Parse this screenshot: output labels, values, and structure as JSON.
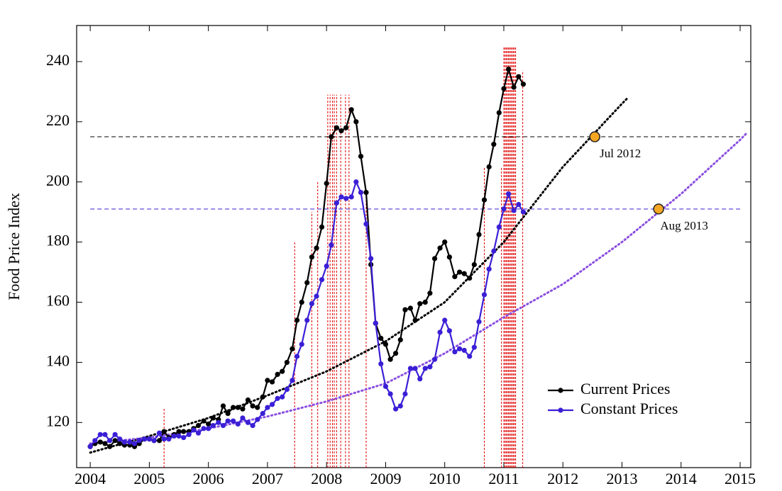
{
  "chart_data": {
    "type": "line",
    "ylabel": "Food Price Index",
    "xlim": [
      2003.77,
      2015.18
    ],
    "ylim": [
      105,
      252
    ],
    "xticks": [
      2004,
      2005,
      2006,
      2007,
      2008,
      2009,
      2010,
      2011,
      2012,
      2013,
      2014,
      2015
    ],
    "yticks": [
      120,
      140,
      160,
      180,
      200,
      220,
      240
    ],
    "legend": "lower right",
    "x": [
      2004.0,
      2004.08,
      2004.17,
      2004.25,
      2004.33,
      2004.42,
      2004.5,
      2004.58,
      2004.67,
      2004.75,
      2004.83,
      2004.92,
      2005.0,
      2005.08,
      2005.17,
      2005.25,
      2005.33,
      2005.42,
      2005.5,
      2005.58,
      2005.67,
      2005.75,
      2005.83,
      2005.92,
      2006.0,
      2006.08,
      2006.17,
      2006.25,
      2006.33,
      2006.42,
      2006.5,
      2006.58,
      2006.67,
      2006.75,
      2006.83,
      2006.92,
      2007.0,
      2007.08,
      2007.17,
      2007.25,
      2007.33,
      2007.42,
      2007.5,
      2007.58,
      2007.67,
      2007.75,
      2007.83,
      2007.92,
      2008.0,
      2008.08,
      2008.17,
      2008.25,
      2008.33,
      2008.42,
      2008.5,
      2008.58,
      2008.67,
      2008.75,
      2008.83,
      2008.92,
      2009.0,
      2009.08,
      2009.17,
      2009.25,
      2009.33,
      2009.42,
      2009.5,
      2009.58,
      2009.67,
      2009.75,
      2009.83,
      2009.92,
      2010.0,
      2010.08,
      2010.17,
      2010.25,
      2010.33,
      2010.42,
      2010.5,
      2010.58,
      2010.67,
      2010.75,
      2010.83,
      2010.92,
      2011.0,
      2011.08,
      2011.17,
      2011.25,
      2011.33
    ],
    "series": [
      {
        "name": "Current Prices",
        "color": "#000000",
        "values": [
          112,
          113,
          113.5,
          113,
          112,
          114,
          113,
          112.5,
          112.5,
          112,
          113,
          114.5,
          114.5,
          114,
          114,
          117,
          115,
          116,
          117,
          117,
          117,
          118,
          119,
          120.5,
          119.5,
          121.5,
          121,
          125.5,
          123,
          125,
          125,
          124.5,
          127.5,
          125.5,
          125,
          128.5,
          134,
          133.5,
          136,
          137,
          140,
          144.5,
          154,
          160,
          166.5,
          175,
          178,
          185,
          199.5,
          215,
          218,
          217,
          218,
          224,
          220,
          208.5,
          196.5,
          172.5,
          153,
          148,
          146,
          141,
          143,
          147.5,
          157.5,
          158,
          154,
          159.5,
          160,
          163,
          174.5,
          178,
          180,
          175,
          168.5,
          170,
          169.5,
          168,
          172.5,
          182.5,
          194,
          205,
          212.5,
          223,
          231,
          237.5,
          231.5,
          235,
          232.5
        ]
      },
      {
        "name": "Constant Prices",
        "color": "#3a1fd6",
        "values": [
          112,
          114,
          116,
          116,
          114,
          116,
          114.5,
          113.5,
          113.5,
          113,
          114,
          114.5,
          114.5,
          114,
          116.5,
          114.5,
          114.5,
          115.5,
          115.5,
          115,
          116,
          117.5,
          116.5,
          118,
          118,
          119,
          120,
          119,
          120.5,
          120.5,
          119.5,
          121.5,
          120,
          119,
          121,
          123,
          125,
          126,
          128,
          128.5,
          131,
          134,
          142,
          146,
          154,
          159.5,
          162,
          167.5,
          172,
          179,
          193,
          195,
          194.5,
          195,
          200,
          196.5,
          186,
          174.5,
          153,
          139.5,
          132,
          129.5,
          124.5,
          125.5,
          129.5,
          138,
          138,
          134.5,
          138,
          138.5,
          141,
          150,
          154,
          150.5,
          143.5,
          144.5,
          144,
          142,
          145,
          153.5,
          162.5,
          171,
          177,
          185,
          191,
          196,
          190.5,
          192.5,
          190
        ]
      }
    ],
    "trend_lines": [
      {
        "color": "#000000",
        "x": [
          2004,
          2005,
          2006,
          2007,
          2008,
          2009,
          2010,
          2011,
          2012,
          2013,
          2013.1
        ],
        "values": [
          110,
          115.5,
          121.5,
          129,
          137,
          147,
          160,
          180,
          205,
          226,
          228
        ]
      },
      {
        "color": "#8a4fe0",
        "x": [
          2004,
          2005,
          2006,
          2007,
          2008,
          2009,
          2010,
          2011,
          2012,
          2013,
          2014,
          2015,
          2015.1
        ],
        "values": [
          113,
          115,
          118,
          122,
          127,
          133,
          143,
          155,
          166,
          180,
          196,
          214,
          216
        ]
      }
    ],
    "reference_lines": [
      {
        "color": "#000000",
        "x": [
          2004,
          2015
        ],
        "value": 215
      },
      {
        "color": "#3a1fd6",
        "x": [
          2004,
          2015
        ],
        "value": 191
      }
    ],
    "annotations": [
      {
        "text": "Jul 2012",
        "x": 2012.54,
        "y": 215,
        "color": "#f5a623"
      },
      {
        "text": "Aug 2013",
        "x": 2013.62,
        "y": 191,
        "color": "#f5a623"
      }
    ],
    "events": {
      "color": "#e00000",
      "x": [
        2005.25,
        2007.46,
        2007.75,
        2007.85,
        2008.02,
        2008.06,
        2008.1,
        2008.13,
        2008.17,
        2008.24,
        2008.32,
        2008.38,
        2008.67,
        2010.67,
        2010.96,
        2011.0,
        2011.02,
        2011.04,
        2011.06,
        2011.08,
        2011.1,
        2011.12,
        2011.14,
        2011.16,
        2011.18,
        2011.2,
        2011.32
      ],
      "values": [
        125,
        180,
        190,
        200,
        229,
        229,
        229,
        229,
        229,
        229,
        229,
        229,
        197,
        205,
        205,
        245,
        245,
        245,
        245,
        245,
        245,
        245,
        245,
        245,
        245,
        245,
        237
      ]
    }
  }
}
